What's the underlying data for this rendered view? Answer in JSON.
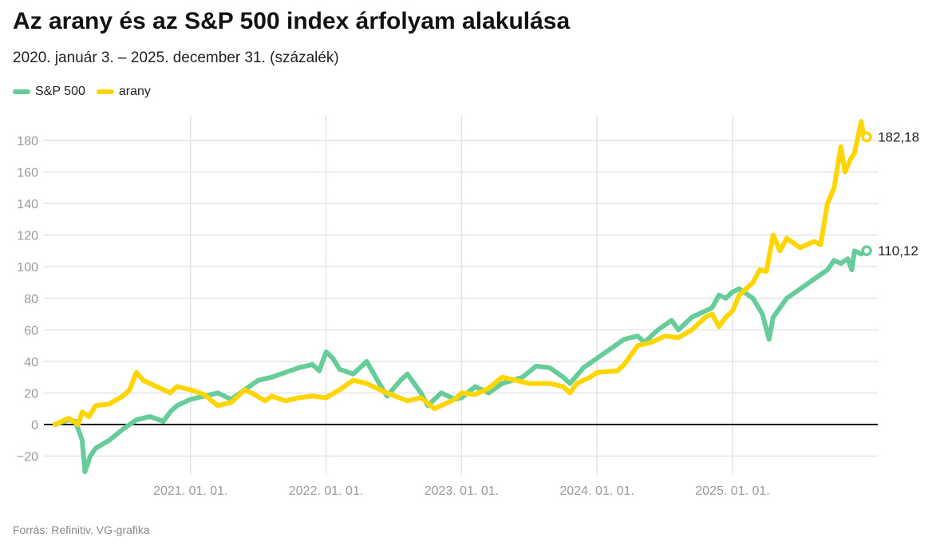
{
  "chart_data": {
    "type": "line",
    "title": "Az arany és az S&P 500 index árfolyam alakulása",
    "subtitle": "2020. január 3. – 2025. december 31. (százalék)",
    "source": "Forrás: Refinitiv, VG-grafika",
    "xlabel": "",
    "ylabel": "",
    "ylim": [
      -32,
      195
    ],
    "yticks": [
      -20,
      0,
      20,
      40,
      60,
      80,
      100,
      120,
      140,
      160,
      180
    ],
    "ytick_labels": [
      "−20",
      "0",
      "20",
      "40",
      "60",
      "80",
      "100",
      "120",
      "140",
      "160",
      "180"
    ],
    "xlim": [
      2020.0,
      2026.07
    ],
    "xticks": [
      2021.0,
      2022.0,
      2023.0,
      2024.0,
      2025.0
    ],
    "xtick_labels": [
      "2021. 01. 01.",
      "2022. 01. 01.",
      "2023. 01. 01.",
      "2024. 01. 01.",
      "2025. 01. 01."
    ],
    "legend_position": "top-left",
    "grid": true,
    "series": [
      {
        "name": "S&P 500",
        "color": "#66CC99",
        "end_label": "110,12",
        "points": [
          [
            2020.0,
            0
          ],
          [
            2020.1,
            3
          ],
          [
            2020.15,
            2
          ],
          [
            2020.2,
            -10
          ],
          [
            2020.22,
            -30
          ],
          [
            2020.26,
            -20
          ],
          [
            2020.3,
            -15
          ],
          [
            2020.4,
            -10
          ],
          [
            2020.5,
            -3
          ],
          [
            2020.6,
            3
          ],
          [
            2020.7,
            5
          ],
          [
            2020.8,
            2
          ],
          [
            2020.85,
            8
          ],
          [
            2020.9,
            12
          ],
          [
            2021.0,
            16
          ],
          [
            2021.1,
            18
          ],
          [
            2021.2,
            20
          ],
          [
            2021.3,
            16
          ],
          [
            2021.4,
            22
          ],
          [
            2021.5,
            28
          ],
          [
            2021.6,
            30
          ],
          [
            2021.7,
            33
          ],
          [
            2021.8,
            36
          ],
          [
            2021.9,
            38
          ],
          [
            2021.95,
            34
          ],
          [
            2022.0,
            46
          ],
          [
            2022.05,
            42
          ],
          [
            2022.1,
            35
          ],
          [
            2022.2,
            32
          ],
          [
            2022.3,
            40
          ],
          [
            2022.4,
            25
          ],
          [
            2022.45,
            18
          ],
          [
            2022.55,
            28
          ],
          [
            2022.6,
            32
          ],
          [
            2022.7,
            20
          ],
          [
            2022.75,
            12
          ],
          [
            2022.85,
            20
          ],
          [
            2022.95,
            16
          ],
          [
            2023.0,
            17
          ],
          [
            2023.1,
            24
          ],
          [
            2023.2,
            20
          ],
          [
            2023.3,
            26
          ],
          [
            2023.45,
            30
          ],
          [
            2023.55,
            37
          ],
          [
            2023.65,
            36
          ],
          [
            2023.75,
            30
          ],
          [
            2023.8,
            26
          ],
          [
            2023.9,
            36
          ],
          [
            2024.0,
            42
          ],
          [
            2024.1,
            48
          ],
          [
            2024.2,
            54
          ],
          [
            2024.3,
            56
          ],
          [
            2024.35,
            52
          ],
          [
            2024.45,
            60
          ],
          [
            2024.55,
            66
          ],
          [
            2024.6,
            60
          ],
          [
            2024.7,
            68
          ],
          [
            2024.8,
            72
          ],
          [
            2024.85,
            74
          ],
          [
            2024.9,
            82
          ],
          [
            2024.95,
            80
          ],
          [
            2025.0,
            84
          ],
          [
            2025.05,
            86
          ],
          [
            2025.15,
            80
          ],
          [
            2025.22,
            70
          ],
          [
            2025.27,
            54
          ],
          [
            2025.3,
            68
          ],
          [
            2025.4,
            80
          ],
          [
            2025.5,
            86
          ],
          [
            2025.6,
            92
          ],
          [
            2025.7,
            98
          ],
          [
            2025.75,
            104
          ],
          [
            2025.8,
            102
          ],
          [
            2025.85,
            105
          ],
          [
            2025.88,
            98
          ],
          [
            2025.9,
            110
          ],
          [
            2025.95,
            108
          ],
          [
            2025.99,
            110.12
          ]
        ]
      },
      {
        "name": "arany",
        "color": "#FFD500",
        "end_label": "182,18",
        "points": [
          [
            2020.0,
            0
          ],
          [
            2020.1,
            4
          ],
          [
            2020.17,
            0
          ],
          [
            2020.2,
            8
          ],
          [
            2020.25,
            5
          ],
          [
            2020.3,
            12
          ],
          [
            2020.4,
            13
          ],
          [
            2020.5,
            18
          ],
          [
            2020.55,
            22
          ],
          [
            2020.6,
            33
          ],
          [
            2020.65,
            28
          ],
          [
            2020.75,
            24
          ],
          [
            2020.85,
            20
          ],
          [
            2020.9,
            24
          ],
          [
            2021.0,
            22
          ],
          [
            2021.1,
            19
          ],
          [
            2021.2,
            12
          ],
          [
            2021.3,
            14
          ],
          [
            2021.4,
            22
          ],
          [
            2021.45,
            20
          ],
          [
            2021.55,
            15
          ],
          [
            2021.6,
            18
          ],
          [
            2021.7,
            15
          ],
          [
            2021.8,
            17
          ],
          [
            2021.9,
            18
          ],
          [
            2022.0,
            17
          ],
          [
            2022.1,
            22
          ],
          [
            2022.2,
            28
          ],
          [
            2022.3,
            26
          ],
          [
            2022.45,
            20
          ],
          [
            2022.6,
            15
          ],
          [
            2022.7,
            17
          ],
          [
            2022.8,
            10
          ],
          [
            2022.85,
            12
          ],
          [
            2022.95,
            16
          ],
          [
            2023.0,
            20
          ],
          [
            2023.1,
            19
          ],
          [
            2023.2,
            23
          ],
          [
            2023.3,
            30
          ],
          [
            2023.4,
            28
          ],
          [
            2023.5,
            26
          ],
          [
            2023.65,
            26
          ],
          [
            2023.75,
            24
          ],
          [
            2023.8,
            20
          ],
          [
            2023.85,
            26
          ],
          [
            2023.95,
            30
          ],
          [
            2024.0,
            33
          ],
          [
            2024.15,
            34
          ],
          [
            2024.2,
            38
          ],
          [
            2024.3,
            50
          ],
          [
            2024.4,
            52
          ],
          [
            2024.5,
            56
          ],
          [
            2024.6,
            55
          ],
          [
            2024.7,
            60
          ],
          [
            2024.8,
            68
          ],
          [
            2024.85,
            70
          ],
          [
            2024.9,
            62
          ],
          [
            2024.95,
            68
          ],
          [
            2025.0,
            72
          ],
          [
            2025.05,
            82
          ],
          [
            2025.15,
            90
          ],
          [
            2025.2,
            98
          ],
          [
            2025.25,
            97
          ],
          [
            2025.3,
            120
          ],
          [
            2025.35,
            110
          ],
          [
            2025.4,
            118
          ],
          [
            2025.5,
            112
          ],
          [
            2025.6,
            116
          ],
          [
            2025.65,
            114
          ],
          [
            2025.7,
            140
          ],
          [
            2025.75,
            150
          ],
          [
            2025.8,
            176
          ],
          [
            2025.83,
            160
          ],
          [
            2025.87,
            168
          ],
          [
            2025.9,
            172
          ],
          [
            2025.95,
            192
          ],
          [
            2025.97,
            182
          ],
          [
            2025.99,
            182.18
          ]
        ]
      }
    ]
  }
}
